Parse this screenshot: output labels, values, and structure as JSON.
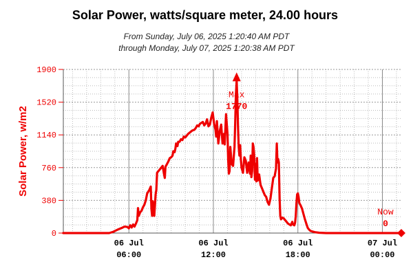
{
  "chart_data": {
    "type": "line",
    "title": "Solar Power, watts/square meter, 24.00 hours",
    "subtitle_line1": "From Sunday, July 06, 2025 1:20:40 AM PDT",
    "subtitle_line2": "through Monday, July 07, 2025 1:20:38 AM PDT",
    "ylabel": "Solar Power, w/m2",
    "ylim": [
      0,
      1900
    ],
    "yticks": [
      "0",
      "380",
      "760",
      "1140",
      "1520",
      "1900"
    ],
    "xlim_hours": [
      1.3444,
      25.3439
    ],
    "xticks": [
      {
        "hour": 6,
        "line1": "06 Jul",
        "line2": "06:00"
      },
      {
        "hour": 12,
        "line1": "06 Jul",
        "line2": "12:00"
      },
      {
        "hour": 18,
        "line1": "06 Jul",
        "line2": "18:00"
      },
      {
        "hour": 24,
        "line1": "07 Jul",
        "line2": "00:00"
      }
    ],
    "grid": true,
    "color": "#ee0000",
    "max_label": "Max",
    "max_value": "1770",
    "max_point": {
      "hour": 13.65,
      "value": 1770
    },
    "now_label": "Now",
    "now_value": "0",
    "now_point": {
      "hour": 25.3439,
      "value": 0
    },
    "series": [
      {
        "points": [
          [
            1.34,
            0
          ],
          [
            4.6,
            0
          ],
          [
            4.9,
            15
          ],
          [
            5.2,
            40
          ],
          [
            5.5,
            60
          ],
          [
            5.7,
            75
          ],
          [
            5.9,
            70
          ],
          [
            6.0,
            55
          ],
          [
            6.1,
            90
          ],
          [
            6.2,
            65
          ],
          [
            6.3,
            100
          ],
          [
            6.4,
            75
          ],
          [
            6.5,
            110
          ],
          [
            6.6,
            150
          ],
          [
            6.65,
            290
          ],
          [
            6.7,
            200
          ],
          [
            6.8,
            240
          ],
          [
            6.9,
            260
          ],
          [
            7.0,
            300
          ],
          [
            7.1,
            330
          ],
          [
            7.2,
            380
          ],
          [
            7.3,
            460
          ],
          [
            7.45,
            500
          ],
          [
            7.55,
            540
          ],
          [
            7.6,
            280
          ],
          [
            7.65,
            200
          ],
          [
            7.7,
            370
          ],
          [
            7.8,
            200
          ],
          [
            7.9,
            450
          ],
          [
            7.95,
            500
          ],
          [
            8.0,
            700
          ],
          [
            8.15,
            730
          ],
          [
            8.3,
            760
          ],
          [
            8.4,
            780
          ],
          [
            8.5,
            680
          ],
          [
            8.55,
            640
          ],
          [
            8.6,
            770
          ],
          [
            8.7,
            800
          ],
          [
            8.8,
            830
          ],
          [
            8.9,
            870
          ],
          [
            9.0,
            880
          ],
          [
            9.1,
            900
          ],
          [
            9.15,
            950
          ],
          [
            9.25,
            940
          ],
          [
            9.3,
            980
          ],
          [
            9.35,
            1040
          ],
          [
            9.45,
            1010
          ],
          [
            9.5,
            1060
          ],
          [
            9.6,
            1060
          ],
          [
            9.7,
            1090
          ],
          [
            9.8,
            1080
          ],
          [
            9.9,
            1120
          ],
          [
            10.0,
            1110
          ],
          [
            10.2,
            1150
          ],
          [
            10.35,
            1170
          ],
          [
            10.5,
            1190
          ],
          [
            10.65,
            1200
          ],
          [
            10.75,
            1220
          ],
          [
            10.85,
            1250
          ],
          [
            10.95,
            1240
          ],
          [
            11.05,
            1270
          ],
          [
            11.15,
            1280
          ],
          [
            11.25,
            1290
          ],
          [
            11.35,
            1250
          ],
          [
            11.45,
            1270
          ],
          [
            11.55,
            1320
          ],
          [
            11.65,
            1240
          ],
          [
            11.75,
            1260
          ],
          [
            11.85,
            1340
          ],
          [
            11.95,
            1400
          ],
          [
            12.05,
            1270
          ],
          [
            12.15,
            1200
          ],
          [
            12.2,
            1120
          ],
          [
            12.25,
            1300
          ],
          [
            12.35,
            1040
          ],
          [
            12.45,
            1180
          ],
          [
            12.55,
            1260
          ],
          [
            12.65,
            1040
          ],
          [
            12.75,
            1150
          ],
          [
            12.8,
            1030
          ],
          [
            12.9,
            1380
          ],
          [
            13.0,
            1150
          ],
          [
            13.05,
            850
          ],
          [
            13.1,
            690
          ],
          [
            13.15,
            720
          ],
          [
            13.2,
            1000
          ],
          [
            13.3,
            800
          ],
          [
            13.4,
            780
          ],
          [
            13.5,
            1000
          ],
          [
            13.55,
            1280
          ],
          [
            13.6,
            1600
          ],
          [
            13.65,
            1770
          ],
          [
            13.7,
            1550
          ],
          [
            13.75,
            1230
          ],
          [
            13.8,
            1000
          ],
          [
            13.85,
            900
          ],
          [
            13.9,
            1020
          ],
          [
            13.95,
            860
          ],
          [
            14.0,
            760
          ],
          [
            14.1,
            700
          ],
          [
            14.2,
            880
          ],
          [
            14.3,
            840
          ],
          [
            14.4,
            700
          ],
          [
            14.5,
            820
          ],
          [
            14.6,
            690
          ],
          [
            14.65,
            900
          ],
          [
            14.7,
            650
          ],
          [
            14.75,
            720
          ],
          [
            14.8,
            1040
          ],
          [
            14.85,
            1000
          ],
          [
            14.9,
            900
          ],
          [
            14.95,
            620
          ],
          [
            15.0,
            800
          ],
          [
            15.05,
            600
          ],
          [
            15.1,
            870
          ],
          [
            15.15,
            610
          ],
          [
            15.25,
            680
          ],
          [
            15.35,
            560
          ],
          [
            15.45,
            520
          ],
          [
            15.55,
            480
          ],
          [
            15.65,
            440
          ],
          [
            15.75,
            420
          ],
          [
            15.85,
            360
          ],
          [
            15.95,
            330
          ],
          [
            16.05,
            400
          ],
          [
            16.15,
            520
          ],
          [
            16.25,
            640
          ],
          [
            16.35,
            660
          ],
          [
            16.45,
            750
          ],
          [
            16.5,
            1040
          ],
          [
            16.55,
            820
          ],
          [
            16.6,
            860
          ],
          [
            16.65,
            820
          ],
          [
            16.7,
            400
          ],
          [
            16.75,
            200
          ],
          [
            16.8,
            160
          ],
          [
            16.9,
            180
          ],
          [
            17.0,
            170
          ],
          [
            17.1,
            150
          ],
          [
            17.2,
            130
          ],
          [
            17.3,
            110
          ],
          [
            17.4,
            100
          ],
          [
            17.5,
            90
          ],
          [
            17.6,
            130
          ],
          [
            17.65,
            100
          ],
          [
            17.75,
            90
          ],
          [
            17.8,
            120
          ],
          [
            17.85,
            200
          ],
          [
            17.9,
            350
          ],
          [
            17.95,
            450
          ],
          [
            18.0,
            460
          ],
          [
            18.05,
            420
          ],
          [
            18.1,
            350
          ],
          [
            18.2,
            320
          ],
          [
            18.3,
            280
          ],
          [
            18.4,
            220
          ],
          [
            18.5,
            160
          ],
          [
            18.6,
            110
          ],
          [
            18.7,
            60
          ],
          [
            18.8,
            40
          ],
          [
            18.9,
            25
          ],
          [
            19.0,
            20
          ],
          [
            19.2,
            10
          ],
          [
            19.5,
            4
          ],
          [
            20.0,
            0
          ],
          [
            25.34,
            0
          ]
        ]
      }
    ]
  }
}
